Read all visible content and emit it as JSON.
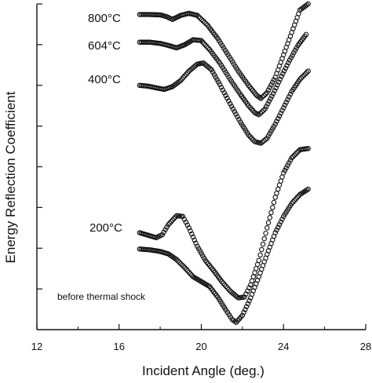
{
  "chart_data": {
    "type": "scatter",
    "title": "",
    "xlabel": "Incident Angle (deg.)",
    "ylabel": "Energy Reflection Coefficient",
    "xlim": [
      12,
      28
    ],
    "ylim": [
      0,
      8
    ],
    "x_ticks": [
      "12",
      "16",
      "20",
      "24",
      "28"
    ],
    "y_tick_count": 8,
    "y_tick_labels_shown": false,
    "grid": false,
    "legend": "none",
    "marker": "open-circle",
    "annotations": [
      {
        "text": "before thermal shock"
      }
    ],
    "series": [
      {
        "name": "800°C",
        "points": [
          [
            17.0,
            7.74
          ],
          [
            17.5,
            7.74
          ],
          [
            18.0,
            7.73
          ],
          [
            18.3,
            7.69
          ],
          [
            18.6,
            7.62
          ],
          [
            19.0,
            7.72
          ],
          [
            19.4,
            7.77
          ],
          [
            19.8,
            7.72
          ],
          [
            20.3,
            7.48
          ],
          [
            20.8,
            7.15
          ],
          [
            21.3,
            6.75
          ],
          [
            21.8,
            6.35
          ],
          [
            22.3,
            6.0
          ],
          [
            22.7,
            5.75
          ],
          [
            22.9,
            5.68
          ],
          [
            23.2,
            5.82
          ],
          [
            23.6,
            6.2
          ],
          [
            24.0,
            6.75
          ],
          [
            24.4,
            7.3
          ],
          [
            24.8,
            7.85
          ],
          [
            25.2,
            8.0
          ]
        ]
      },
      {
        "name": "604°C",
        "points": [
          [
            17.0,
            7.06
          ],
          [
            17.5,
            7.06
          ],
          [
            18.0,
            7.03
          ],
          [
            18.4,
            6.98
          ],
          [
            18.8,
            6.92
          ],
          [
            19.2,
            7.0
          ],
          [
            19.6,
            7.12
          ],
          [
            20.0,
            7.1
          ],
          [
            20.4,
            6.88
          ],
          [
            20.9,
            6.55
          ],
          [
            21.4,
            6.15
          ],
          [
            21.9,
            5.78
          ],
          [
            22.3,
            5.5
          ],
          [
            22.6,
            5.33
          ],
          [
            22.8,
            5.28
          ],
          [
            23.1,
            5.42
          ],
          [
            23.5,
            5.8
          ],
          [
            23.9,
            6.22
          ],
          [
            24.3,
            6.62
          ],
          [
            24.7,
            6.98
          ],
          [
            25.1,
            7.25
          ]
        ]
      },
      {
        "name": "400°C",
        "points": [
          [
            17.0,
            6.0
          ],
          [
            17.4,
            5.98
          ],
          [
            17.8,
            5.94
          ],
          [
            18.2,
            5.9
          ],
          [
            18.6,
            5.97
          ],
          [
            19.0,
            6.12
          ],
          [
            19.4,
            6.35
          ],
          [
            19.8,
            6.52
          ],
          [
            20.1,
            6.55
          ],
          [
            20.5,
            6.38
          ],
          [
            20.9,
            6.02
          ],
          [
            21.4,
            5.55
          ],
          [
            21.9,
            5.1
          ],
          [
            22.3,
            4.78
          ],
          [
            22.6,
            4.62
          ],
          [
            22.9,
            4.58
          ],
          [
            23.2,
            4.7
          ],
          [
            23.6,
            5.05
          ],
          [
            24.0,
            5.45
          ],
          [
            24.4,
            5.85
          ],
          [
            24.8,
            6.15
          ],
          [
            25.2,
            6.35
          ]
        ]
      },
      {
        "name": "200°C",
        "points": [
          [
            17.0,
            2.38
          ],
          [
            17.4,
            2.32
          ],
          [
            17.8,
            2.26
          ],
          [
            18.1,
            2.33
          ],
          [
            18.4,
            2.58
          ],
          [
            18.8,
            2.8
          ],
          [
            19.1,
            2.78
          ],
          [
            19.4,
            2.5
          ],
          [
            19.8,
            2.05
          ],
          [
            20.2,
            1.7
          ],
          [
            20.6,
            1.45
          ],
          [
            21.0,
            1.18
          ],
          [
            21.4,
            0.95
          ],
          [
            21.8,
            0.78
          ],
          [
            22.1,
            0.8
          ],
          [
            22.4,
            1.1
          ],
          [
            22.8,
            1.7
          ],
          [
            23.2,
            2.5
          ],
          [
            23.6,
            3.25
          ],
          [
            24.0,
            3.85
          ],
          [
            24.4,
            4.22
          ],
          [
            24.8,
            4.42
          ],
          [
            25.2,
            4.45
          ]
        ]
      },
      {
        "name": "before thermal shock",
        "points": [
          [
            17.0,
            1.98
          ],
          [
            17.5,
            1.96
          ],
          [
            18.0,
            1.92
          ],
          [
            18.4,
            1.86
          ],
          [
            18.8,
            1.72
          ],
          [
            19.2,
            1.52
          ],
          [
            19.6,
            1.3
          ],
          [
            20.0,
            1.18
          ],
          [
            20.4,
            1.06
          ],
          [
            20.8,
            0.8
          ],
          [
            21.2,
            0.48
          ],
          [
            21.5,
            0.25
          ],
          [
            21.7,
            0.18
          ],
          [
            22.0,
            0.35
          ],
          [
            22.4,
            0.78
          ],
          [
            22.8,
            1.3
          ],
          [
            23.2,
            1.85
          ],
          [
            23.6,
            2.38
          ],
          [
            24.0,
            2.78
          ],
          [
            24.4,
            3.1
          ],
          [
            24.8,
            3.32
          ],
          [
            25.2,
            3.45
          ]
        ]
      }
    ],
    "curve_labels": [
      "800°C",
      "604°C",
      "400°C",
      "200°C"
    ]
  }
}
